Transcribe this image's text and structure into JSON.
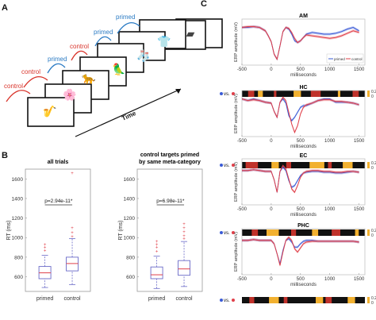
{
  "panels": {
    "a": "A",
    "b": "B",
    "c": "C"
  },
  "panel_a": {
    "labels": [
      "control",
      "control",
      "primed",
      "control",
      "primed",
      "primed"
    ],
    "label_colors": {
      "control": "#d9342b",
      "primed": "#2b7bc4"
    },
    "time_label": "Time",
    "picture_icons": [
      "saxophone-picture",
      "flower-picture",
      "leopard-picture",
      "parrot-picture",
      "socks-picture",
      "shirt-picture",
      "folded-cloth-picture"
    ]
  },
  "panel_b": {
    "ylabel": "RT (ms)",
    "plots": [
      {
        "title_lines": [
          "all trials"
        ],
        "pvalue": "p=2.94e-11*",
        "yticks": [
          "600",
          "800",
          "1000",
          "1200",
          "1400",
          "1600"
        ]
      },
      {
        "title_lines": [
          "control targets primed",
          "by same meta-category"
        ],
        "pvalue": "p=6.98e-11*",
        "yticks": [
          "600",
          "800",
          "1000",
          "1200",
          "1400",
          "1600"
        ]
      }
    ],
    "categories": [
      "primed",
      "control"
    ]
  },
  "panel_c": {
    "ylabel": "ERP amplitude (mV)",
    "xlabel": "milliseconds",
    "xticks": [
      "-500",
      "0",
      "500",
      "1000",
      "1500"
    ],
    "vs_label": "vs.",
    "legend": [
      "primed",
      "control"
    ],
    "colorbar_ticks": [
      "0.2",
      "0"
    ],
    "regions": [
      "AM",
      "HC",
      "EC",
      "PHC"
    ]
  },
  "chart_data": [
    {
      "type": "box",
      "title": "all trials",
      "ylabel": "RT (ms)",
      "ylim": [
        450,
        1700
      ],
      "categories": [
        "primed",
        "control"
      ],
      "box_stats": [
        {
          "category": "primed",
          "whisker_low": 490,
          "q1": 580,
          "median": 640,
          "q3": 705,
          "whisker_high": 820,
          "outliers": [
            870,
            900,
            930
          ]
        },
        {
          "category": "control",
          "whisker_low": 520,
          "q1": 660,
          "median": 735,
          "q3": 800,
          "whisker_high": 990,
          "outliers": [
            1010,
            1050,
            1100,
            1660
          ]
        }
      ],
      "annotation": "p=2.94e-11*"
    },
    {
      "type": "box",
      "title": "control targets primed by same meta-category",
      "ylabel": "RT (ms)",
      "ylim": [
        450,
        1700
      ],
      "categories": [
        "primed",
        "control"
      ],
      "box_stats": [
        {
          "category": "primed",
          "whisker_low": 480,
          "q1": 580,
          "median": 620,
          "q3": 700,
          "whisker_high": 810,
          "outliers": [
            860,
            900,
            930,
            960
          ]
        },
        {
          "category": "control",
          "whisker_low": 500,
          "q1": 615,
          "median": 680,
          "q3": 765,
          "whisker_high": 960,
          "outliers": [
            990,
            1020,
            1060,
            1100,
            1140
          ]
        }
      ],
      "annotation": "p=6.98e-11*"
    },
    {
      "type": "line",
      "title": "AM",
      "xlabel": "milliseconds",
      "ylabel": "ERP amplitude (mV)",
      "xlim": [
        -500,
        1600
      ],
      "x": [
        -500,
        -400,
        -300,
        -200,
        -100,
        -50,
        0,
        50,
        100,
        150,
        200,
        250,
        300,
        350,
        400,
        450,
        500,
        550,
        600,
        700,
        800,
        900,
        1000,
        1100,
        1200,
        1300,
        1400,
        1500
      ],
      "series": [
        {
          "name": "primed",
          "color": "#3a5bd6",
          "values": [
            0.1,
            0.1,
            0.11,
            0.1,
            0.06,
            0.0,
            -0.07,
            -0.22,
            -0.28,
            -0.12,
            0.05,
            0.1,
            0.08,
            0.02,
            -0.06,
            -0.08,
            -0.06,
            -0.02,
            0.02,
            0.04,
            0.03,
            0.02,
            0.02,
            0.03,
            0.05,
            0.08,
            0.1,
            0.06
          ]
        },
        {
          "name": "control",
          "color": "#e0404a",
          "values": [
            0.1,
            0.11,
            0.11,
            0.1,
            0.06,
            0.0,
            -0.07,
            -0.22,
            -0.28,
            -0.12,
            0.05,
            0.1,
            0.09,
            0.04,
            -0.03,
            -0.08,
            -0.06,
            -0.02,
            0.01,
            0.0,
            -0.01,
            -0.02,
            -0.03,
            -0.02,
            0.0,
            0.03,
            0.06,
            0.04
          ]
        }
      ]
    },
    {
      "type": "line",
      "title": "HC",
      "xlabel": "milliseconds",
      "ylabel": "ERP amplitude (mV)",
      "xlim": [
        -500,
        1600
      ],
      "x": [
        -500,
        -400,
        -300,
        -200,
        -100,
        0,
        50,
        100,
        150,
        200,
        250,
        300,
        350,
        400,
        450,
        500,
        550,
        600,
        700,
        800,
        900,
        1000,
        1100,
        1200,
        1300,
        1400,
        1500
      ],
      "series": [
        {
          "name": "primed",
          "color": "#3a5bd6",
          "values": [
            0.1,
            0.08,
            0.1,
            0.08,
            0.06,
            0.05,
            -0.05,
            -0.12,
            0.06,
            0.1,
            0.05,
            -0.1,
            -0.16,
            -0.12,
            -0.06,
            0.0,
            0.02,
            0.02,
            0.05,
            0.08,
            0.1,
            0.1,
            0.06,
            0.06,
            0.06,
            0.05,
            0.03
          ]
        },
        {
          "name": "control",
          "color": "#e0404a",
          "values": [
            0.1,
            0.08,
            0.09,
            0.08,
            0.06,
            0.05,
            -0.05,
            -0.12,
            0.06,
            0.12,
            0.08,
            -0.06,
            -0.2,
            -0.3,
            -0.22,
            -0.08,
            0.0,
            0.03,
            0.05,
            0.08,
            0.09,
            0.09,
            0.07,
            0.07,
            0.06,
            0.05,
            0.03
          ]
        }
      ]
    },
    {
      "type": "line",
      "title": "EC",
      "xlabel": "milliseconds",
      "ylabel": "ERP amplitude (mV)",
      "xlim": [
        -500,
        1600
      ],
      "x": [
        -500,
        -400,
        -300,
        -200,
        -100,
        0,
        50,
        100,
        150,
        200,
        250,
        300,
        350,
        400,
        450,
        500,
        550,
        600,
        700,
        800,
        900,
        1000,
        1100,
        1200,
        1300,
        1400,
        1500
      ],
      "series": [
        {
          "name": "primed",
          "color": "#3a5bd6",
          "values": [
            0.06,
            0.06,
            0.07,
            0.06,
            0.05,
            0.05,
            -0.05,
            -0.2,
            0.05,
            0.1,
            0.06,
            -0.06,
            -0.14,
            -0.12,
            -0.06,
            0.0,
            0.03,
            0.04,
            0.05,
            0.05,
            0.04,
            0.04,
            0.03,
            0.03,
            0.04,
            0.05,
            0.04
          ]
        },
        {
          "name": "control",
          "color": "#e0404a",
          "values": [
            0.06,
            0.06,
            0.07,
            0.06,
            0.05,
            0.05,
            -0.05,
            -0.2,
            0.05,
            0.12,
            0.08,
            -0.04,
            -0.16,
            -0.2,
            -0.12,
            -0.02,
            0.03,
            0.05,
            0.06,
            0.06,
            0.05,
            0.05,
            0.04,
            0.04,
            0.05,
            0.05,
            0.04
          ]
        }
      ]
    },
    {
      "type": "line",
      "title": "PHC",
      "xlabel": "milliseconds",
      "ylabel": "ERP amplitude (mV)",
      "xlim": [
        -500,
        1600
      ],
      "x": [
        -500,
        -400,
        -300,
        -200,
        -100,
        0,
        50,
        100,
        150,
        200,
        250,
        300,
        350,
        400,
        450,
        500,
        550,
        600,
        700,
        800,
        900,
        1000,
        1100,
        1200,
        1300,
        1400,
        1500
      ],
      "series": [
        {
          "name": "primed",
          "color": "#3a5bd6",
          "values": [
            0.06,
            0.06,
            0.07,
            0.06,
            0.06,
            0.06,
            0.02,
            -0.1,
            -0.22,
            -0.06,
            0.06,
            0.08,
            0.04,
            -0.02,
            -0.02,
            0.02,
            0.05,
            0.06,
            0.06,
            0.05,
            0.05,
            0.05,
            0.05,
            0.05,
            0.05,
            0.05,
            0.04
          ]
        },
        {
          "name": "control",
          "color": "#e0404a",
          "values": [
            0.06,
            0.06,
            0.07,
            0.06,
            0.06,
            0.06,
            0.02,
            -0.1,
            -0.24,
            -0.08,
            0.06,
            0.1,
            0.06,
            -0.04,
            -0.08,
            -0.03,
            0.02,
            0.04,
            0.05,
            0.05,
            0.05,
            0.05,
            0.05,
            0.05,
            0.05,
            0.05,
            0.04
          ]
        }
      ]
    }
  ]
}
